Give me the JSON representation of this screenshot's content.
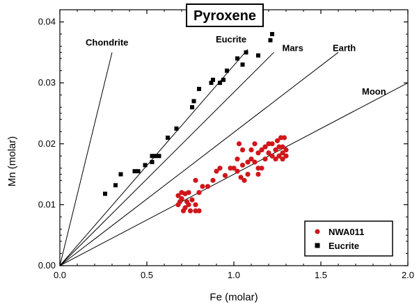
{
  "chart_data": {
    "type": "scatter",
    "title": "Pyroxene",
    "xlabel": "Fe (molar)",
    "ylabel": "Mn (molar)",
    "xlim": [
      0,
      2.0
    ],
    "ylim": [
      0,
      0.042
    ],
    "xticks": [
      0.0,
      0.5,
      1.0,
      1.5,
      2.0
    ],
    "xtick_labels": [
      "0.0",
      "0.5",
      "1.0",
      "1.5",
      "2.0"
    ],
    "yticks": [
      0.0,
      0.01,
      0.02,
      0.03,
      0.04
    ],
    "ytick_labels": [
      "0.00",
      "0.01",
      "0.02",
      "0.03",
      "0.04"
    ],
    "grid": false,
    "legend_position": "bottom-right",
    "reference_lines": [
      {
        "name": "Chondrite",
        "x2": 0.3,
        "y2": 0.035
      },
      {
        "name": "Eucrite",
        "x2": 1.08,
        "y2": 0.0355
      },
      {
        "name": "Mars",
        "x2": 1.23,
        "y2": 0.035
      },
      {
        "name": "Earth",
        "x2": 1.6,
        "y2": 0.035
      },
      {
        "name": "Moon",
        "x2": 2.0,
        "y2": 0.03
      }
    ],
    "series": [
      {
        "name": "NWA011",
        "color": "#d0161b",
        "marker": "circle",
        "points": [
          [
            0.68,
            0.0115
          ],
          [
            0.7,
            0.012
          ],
          [
            0.72,
            0.0118
          ],
          [
            0.74,
            0.012
          ],
          [
            0.7,
            0.011
          ],
          [
            0.69,
            0.0105
          ],
          [
            0.73,
            0.0105
          ],
          [
            0.76,
            0.0108
          ],
          [
            0.68,
            0.01
          ],
          [
            0.72,
            0.0095
          ],
          [
            0.74,
            0.01
          ],
          [
            0.71,
            0.009
          ],
          [
            0.75,
            0.009
          ],
          [
            0.78,
            0.009
          ],
          [
            0.8,
            0.009
          ],
          [
            0.78,
            0.01
          ],
          [
            0.8,
            0.012
          ],
          [
            0.78,
            0.014
          ],
          [
            0.82,
            0.013
          ],
          [
            0.85,
            0.013
          ],
          [
            0.88,
            0.014
          ],
          [
            0.9,
            0.0155
          ],
          [
            0.92,
            0.016
          ],
          [
            0.95,
            0.0148
          ],
          [
            0.98,
            0.016
          ],
          [
            1.0,
            0.016
          ],
          [
            1.02,
            0.0175
          ],
          [
            1.03,
            0.02
          ],
          [
            1.05,
            0.019
          ],
          [
            1.05,
            0.0165
          ],
          [
            1.02,
            0.0155
          ],
          [
            1.04,
            0.0145
          ],
          [
            1.06,
            0.014
          ],
          [
            1.08,
            0.015
          ],
          [
            1.08,
            0.017
          ],
          [
            1.1,
            0.0175
          ],
          [
            1.12,
            0.017
          ],
          [
            1.14,
            0.016
          ],
          [
            1.14,
            0.015
          ],
          [
            1.16,
            0.016
          ],
          [
            1.18,
            0.0175
          ],
          [
            1.1,
            0.019
          ],
          [
            1.14,
            0.0185
          ],
          [
            1.18,
            0.0195
          ],
          [
            1.2,
            0.02
          ],
          [
            1.22,
            0.018
          ],
          [
            1.24,
            0.0175
          ],
          [
            1.26,
            0.018
          ],
          [
            1.28,
            0.0185
          ],
          [
            1.3,
            0.019
          ],
          [
            1.26,
            0.0195
          ],
          [
            1.22,
            0.02
          ],
          [
            1.24,
            0.019
          ],
          [
            1.28,
            0.0175
          ],
          [
            1.3,
            0.018
          ],
          [
            1.27,
            0.021
          ],
          [
            1.29,
            0.021
          ],
          [
            1.25,
            0.0205
          ],
          [
            1.28,
            0.0195
          ],
          [
            1.2,
            0.0185
          ],
          [
            1.16,
            0.019
          ],
          [
            1.12,
            0.02
          ]
        ]
      },
      {
        "name": "Eucrite",
        "color": "#000000",
        "marker": "square",
        "points": [
          [
            0.26,
            0.0118
          ],
          [
            0.32,
            0.0132
          ],
          [
            0.35,
            0.015
          ],
          [
            0.43,
            0.0155
          ],
          [
            0.45,
            0.0155
          ],
          [
            0.49,
            0.0165
          ],
          [
            0.53,
            0.017
          ],
          [
            0.55,
            0.018
          ],
          [
            0.57,
            0.018
          ],
          [
            0.53,
            0.018
          ],
          [
            0.62,
            0.021
          ],
          [
            0.67,
            0.0225
          ],
          [
            0.76,
            0.026
          ],
          [
            0.77,
            0.027
          ],
          [
            0.8,
            0.029
          ],
          [
            0.87,
            0.03
          ],
          [
            0.88,
            0.0305
          ],
          [
            0.92,
            0.03
          ],
          [
            0.94,
            0.0305
          ],
          [
            0.96,
            0.032
          ],
          [
            1.02,
            0.034
          ],
          [
            1.05,
            0.033
          ],
          [
            1.07,
            0.035
          ],
          [
            1.14,
            0.0345
          ],
          [
            1.21,
            0.037
          ],
          [
            1.22,
            0.038
          ]
        ]
      }
    ],
    "annotations": [
      "Chondrite",
      "Eucrite",
      "Mars",
      "Earth",
      "Moon"
    ]
  }
}
